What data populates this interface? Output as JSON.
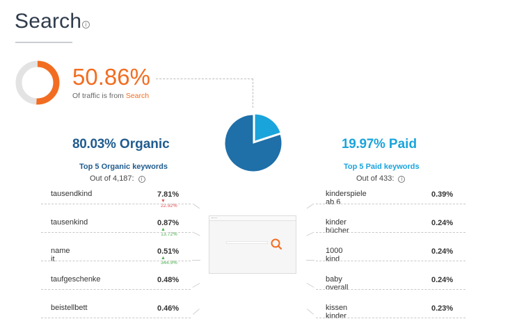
{
  "header": {
    "title": "Search",
    "info_icon": "info-icon"
  },
  "summary": {
    "percentage": "50.86%",
    "percentage_value": 50.86,
    "caption_prefix": "Of traffic is from ",
    "caption_highlight": "Search",
    "accent_color": "#f26d21"
  },
  "split": {
    "organic_fraction": 0.8003,
    "paid_fraction": 0.1997,
    "organic_color": "#1f6fa8",
    "paid_color": "#1aa4dc"
  },
  "organic": {
    "percent": "80.03%",
    "label": "Organic",
    "keywords_title": "Top 5 Organic keywords",
    "out_of": "Out of 4,187:",
    "keywords": [
      {
        "name": "tausendkind",
        "value": "7.81%",
        "change": "22.92%",
        "direction": "down"
      },
      {
        "name": "tausenkind",
        "value": "0.87%",
        "change": "13.72%",
        "direction": "up"
      },
      {
        "name": "name it",
        "value": "0.51%",
        "change": "344.9%",
        "direction": "up"
      },
      {
        "name": "taufgeschenke",
        "value": "0.48%",
        "change": "",
        "direction": ""
      },
      {
        "name": "beistellbett",
        "value": "0.46%",
        "change": "",
        "direction": ""
      }
    ]
  },
  "paid": {
    "percent": "19.97%",
    "label": "Paid",
    "keywords_title": "Top 5 Paid keywords",
    "out_of": "Out of 433:",
    "keywords": [
      {
        "name": "kinderspiele ab 6",
        "value": "0.39%"
      },
      {
        "name": "kinder bücher",
        "value": "0.24%"
      },
      {
        "name": "1000 kind",
        "value": "0.24%"
      },
      {
        "name": "baby overall",
        "value": "0.24%"
      },
      {
        "name": "kissen kinder",
        "value": "0.23%"
      }
    ]
  },
  "icons": {
    "up_arrow": "▲",
    "down_arrow": "▼",
    "info": "i"
  }
}
